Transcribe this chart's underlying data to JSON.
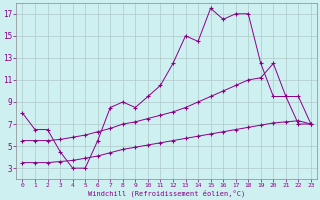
{
  "xlabel": "Windchill (Refroidissement éolien,°C)",
  "background_color": "#cff0f0",
  "grid_color": "#b0c8c8",
  "line_color": "#880088",
  "xlim": [
    -0.5,
    23.5
  ],
  "ylim": [
    2,
    18
  ],
  "yticks": [
    3,
    5,
    7,
    9,
    11,
    13,
    15,
    17
  ],
  "xticks": [
    0,
    1,
    2,
    3,
    4,
    5,
    6,
    7,
    8,
    9,
    10,
    11,
    12,
    13,
    14,
    15,
    16,
    17,
    18,
    19,
    20,
    21,
    22,
    23
  ],
  "series1_x": [
    0,
    1,
    2,
    3,
    4,
    5,
    6,
    7,
    8,
    9,
    10,
    11,
    12,
    13,
    14,
    15,
    16,
    17,
    18,
    19,
    20,
    21,
    22,
    23
  ],
  "series1_y": [
    8.0,
    6.5,
    6.5,
    4.5,
    3.0,
    3.0,
    5.5,
    8.5,
    9.0,
    8.5,
    9.5,
    10.5,
    12.5,
    15.0,
    14.5,
    17.5,
    16.5,
    17.0,
    17.0,
    12.5,
    9.5,
    9.5,
    7.0,
    7.0
  ],
  "series2_x": [
    0,
    1,
    2,
    3,
    4,
    5,
    6,
    7,
    8,
    9,
    10,
    11,
    12,
    13,
    14,
    15,
    16,
    17,
    18,
    19,
    20,
    21,
    22,
    23
  ],
  "series2_y": [
    5.5,
    5.5,
    5.5,
    5.6,
    5.8,
    6.0,
    6.3,
    6.6,
    7.0,
    7.2,
    7.5,
    7.8,
    8.1,
    8.5,
    9.0,
    9.5,
    10.0,
    10.5,
    11.0,
    11.2,
    12.5,
    9.5,
    9.5,
    7.0
  ],
  "series3_x": [
    0,
    1,
    2,
    3,
    4,
    5,
    6,
    7,
    8,
    9,
    10,
    11,
    12,
    13,
    14,
    15,
    16,
    17,
    18,
    19,
    20,
    21,
    22,
    23
  ],
  "series3_y": [
    3.5,
    3.5,
    3.5,
    3.6,
    3.7,
    3.9,
    4.1,
    4.4,
    4.7,
    4.9,
    5.1,
    5.3,
    5.5,
    5.7,
    5.9,
    6.1,
    6.3,
    6.5,
    6.7,
    6.9,
    7.1,
    7.2,
    7.3,
    7.0
  ]
}
